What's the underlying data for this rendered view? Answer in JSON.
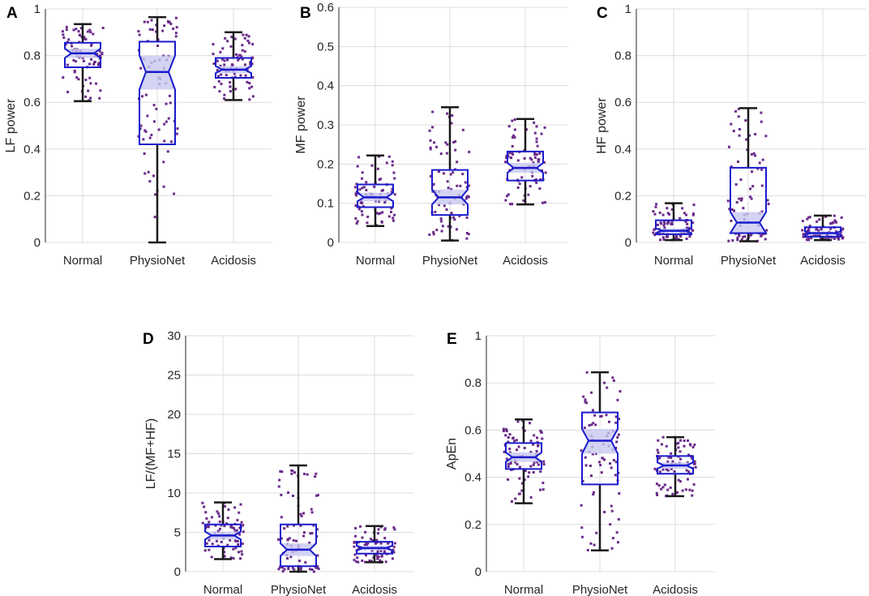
{
  "colors": {
    "box": "#1a1acc",
    "notch_fill": "#c8c8f0",
    "whisker": "#1a1a1a",
    "points": "#6a2a8a",
    "grid": "#dcdcdc"
  },
  "chart_data": [
    {
      "panel": "A",
      "type": "box",
      "ylabel": "LF power",
      "ylim": [
        0,
        1
      ],
      "yticks": [
        "0",
        "0.2",
        "0.4",
        "0.6",
        "0.8",
        "1"
      ],
      "yticks_values": [
        0,
        0.2,
        0.4,
        0.6,
        0.8,
        1
      ],
      "grid": true,
      "categories": [
        "Normal",
        "PhysioNet",
        "Acidosis"
      ],
      "boxes": [
        {
          "whisker_low": 0.605,
          "q1": 0.75,
          "median": 0.81,
          "q3": 0.855,
          "whisker_high": 0.935,
          "notch_low": 0.79,
          "notch_high": 0.83
        },
        {
          "whisker_low": 0.0,
          "q1": 0.42,
          "median": 0.73,
          "q3": 0.86,
          "whisker_high": 0.965,
          "notch_low": 0.655,
          "notch_high": 0.8
        },
        {
          "whisker_low": 0.61,
          "q1": 0.705,
          "median": 0.74,
          "q3": 0.79,
          "whisker_high": 0.9,
          "notch_low": 0.725,
          "notch_high": 0.755
        }
      ]
    },
    {
      "panel": "B",
      "type": "box",
      "ylabel": "MF power",
      "ylim": [
        0,
        0.6
      ],
      "yticks": [
        "0",
        "0.1",
        "0.2",
        "0.3",
        "0.4",
        "0.5",
        "0.6"
      ],
      "yticks_values": [
        0,
        0.1,
        0.2,
        0.3,
        0.4,
        0.5,
        0.6
      ],
      "grid": true,
      "categories": [
        "Normal",
        "PhysioNet",
        "Acidosis"
      ],
      "boxes": [
        {
          "whisker_low": 0.042,
          "q1": 0.09,
          "median": 0.115,
          "q3": 0.148,
          "whisker_high": 0.222,
          "notch_low": 0.105,
          "notch_high": 0.127
        },
        {
          "whisker_low": 0.005,
          "q1": 0.07,
          "median": 0.115,
          "q3": 0.185,
          "whisker_high": 0.345,
          "notch_low": 0.097,
          "notch_high": 0.135
        },
        {
          "whisker_low": 0.097,
          "q1": 0.158,
          "median": 0.19,
          "q3": 0.232,
          "whisker_high": 0.315,
          "notch_low": 0.178,
          "notch_high": 0.203
        }
      ]
    },
    {
      "panel": "C",
      "type": "box",
      "ylabel": "HF power",
      "ylim": [
        0,
        1
      ],
      "yticks": [
        "0",
        "0.2",
        "0.4",
        "0.6",
        "0.8",
        "1"
      ],
      "yticks_values": [
        0,
        0.2,
        0.4,
        0.6,
        0.8,
        1
      ],
      "grid": true,
      "categories": [
        "Normal",
        "PhysioNet",
        "Acidosis"
      ],
      "boxes": [
        {
          "whisker_low": 0.01,
          "q1": 0.035,
          "median": 0.05,
          "q3": 0.095,
          "whisker_high": 0.168,
          "notch_low": 0.04,
          "notch_high": 0.06
        },
        {
          "whisker_low": 0.005,
          "q1": 0.04,
          "median": 0.085,
          "q3": 0.32,
          "whisker_high": 0.575,
          "notch_low": 0.04,
          "notch_high": 0.13
        },
        {
          "whisker_low": 0.01,
          "q1": 0.025,
          "median": 0.04,
          "q3": 0.065,
          "whisker_high": 0.115,
          "notch_low": 0.033,
          "notch_high": 0.047
        }
      ]
    },
    {
      "panel": "D",
      "type": "box",
      "ylabel": "LF/(MF+HF)",
      "ylim": [
        0,
        30
      ],
      "yticks": [
        "0",
        "5",
        "10",
        "15",
        "20",
        "25",
        "30"
      ],
      "yticks_values": [
        0,
        5,
        10,
        15,
        20,
        25,
        30
      ],
      "grid": true,
      "categories": [
        "Normal",
        "PhysioNet",
        "Acidosis"
      ],
      "boxes": [
        {
          "whisker_low": 1.6,
          "q1": 3.2,
          "median": 4.6,
          "q3": 6.0,
          "whisker_high": 8.8,
          "notch_low": 4.1,
          "notch_high": 5.1
        },
        {
          "whisker_low": 0.0,
          "q1": 0.7,
          "median": 2.8,
          "q3": 6.0,
          "whisker_high": 13.5,
          "notch_low": 2.0,
          "notch_high": 3.6
        },
        {
          "whisker_low": 1.2,
          "q1": 2.3,
          "median": 3.0,
          "q3": 3.8,
          "whisker_high": 5.8,
          "notch_low": 2.7,
          "notch_high": 3.3
        }
      ]
    },
    {
      "panel": "E",
      "type": "box",
      "ylabel": "ApEn",
      "ylim": [
        0,
        1
      ],
      "yticks": [
        "0",
        "0.2",
        "0.4",
        "0.6",
        "0.8",
        "1"
      ],
      "yticks_values": [
        0,
        0.2,
        0.4,
        0.6,
        0.8,
        1
      ],
      "grid": true,
      "categories": [
        "Normal",
        "PhysioNet",
        "Acidosis"
      ],
      "boxes": [
        {
          "whisker_low": 0.29,
          "q1": 0.435,
          "median": 0.485,
          "q3": 0.545,
          "whisker_high": 0.645,
          "notch_low": 0.465,
          "notch_high": 0.505
        },
        {
          "whisker_low": 0.09,
          "q1": 0.37,
          "median": 0.555,
          "q3": 0.675,
          "whisker_high": 0.845,
          "notch_low": 0.5,
          "notch_high": 0.605
        },
        {
          "whisker_low": 0.32,
          "q1": 0.415,
          "median": 0.45,
          "q3": 0.49,
          "whisker_high": 0.57,
          "notch_low": 0.437,
          "notch_high": 0.463
        }
      ]
    }
  ]
}
